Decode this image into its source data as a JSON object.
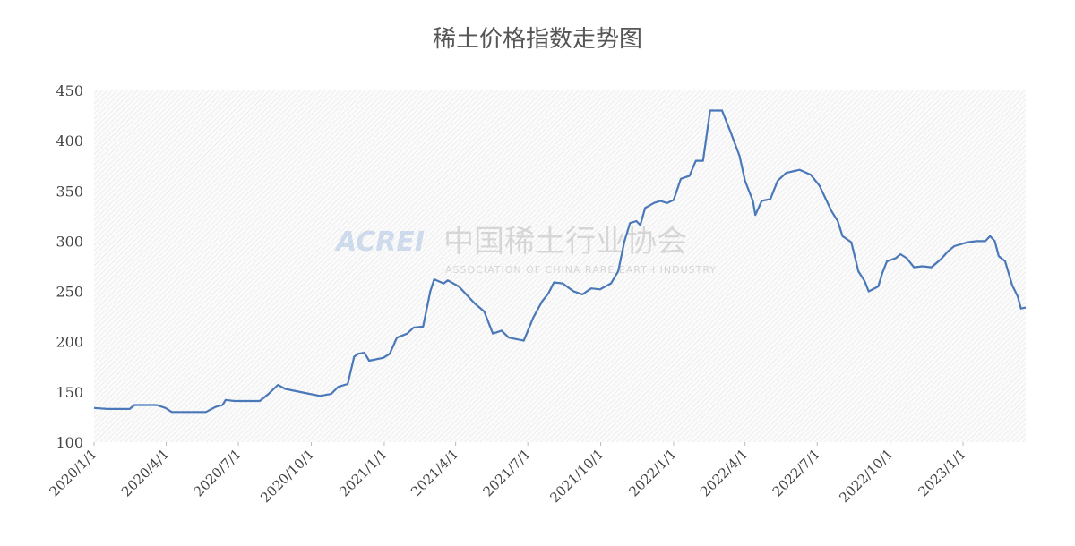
{
  "chart_data": {
    "type": "line",
    "title": "稀土价格指数走势图",
    "watermark": {
      "logo": "ACREI",
      "name": "中国稀土行业协会",
      "subtitle": "ASSOCIATION OF CHINA RARE EARTH INDUSTRY"
    },
    "x": [
      "2020/1/1",
      "2020/1/18",
      "2020/2/15",
      "2020/2/21",
      "2020/3/9",
      "2020/3/20",
      "2020/3/31",
      "2020/4/8",
      "2020/5/21",
      "2020/6/2",
      "2020/6/11",
      "2020/6/15",
      "2020/6/26",
      "2020/7/28",
      "2020/8/8",
      "2020/8/20",
      "2020/8/29",
      "2020/9/23",
      "2020/10/12",
      "2020/10/26",
      "2020/11/4",
      "2020/11/16",
      "2020/11/24",
      "2020/11/29",
      "2020/12/7",
      "2020/12/13",
      "2020/12/31",
      "2021/1/8",
      "2021/1/17",
      "2021/1/30",
      "2021/2/7",
      "2021/2/19",
      "2021/2/28",
      "2021/3/5",
      "2021/3/17",
      "2021/3/22",
      "2021/4/5",
      "2021/4/25",
      "2021/5/7",
      "2021/5/18",
      "2021/5/29",
      "2021/6/7",
      "2021/6/26",
      "2021/7/8",
      "2021/7/19",
      "2021/7/27",
      "2021/8/3",
      "2021/8/14",
      "2021/8/28",
      "2021/9/8",
      "2021/9/19",
      "2021/9/30",
      "2021/10/14",
      "2021/10/23",
      "2021/10/31",
      "2021/11/7",
      "2021/11/15",
      "2021/11/20",
      "2021/11/26",
      "2021/12/7",
      "2021/12/15",
      "2021/12/24",
      "2022/1/1",
      "2022/1/10",
      "2022/1/21",
      "2022/1/29",
      "2022/2/7",
      "2022/2/16",
      "2022/3/3",
      "2022/3/13",
      "2022/3/25",
      "2022/4/1",
      "2022/4/11",
      "2022/4/14",
      "2022/4/22",
      "2022/5/3",
      "2022/5/12",
      "2022/5/23",
      "2022/6/9",
      "2022/6/23",
      "2022/7/4",
      "2022/7/10",
      "2022/7/19",
      "2022/7/27",
      "2022/8/2",
      "2022/8/13",
      "2022/8/22",
      "2022/8/30",
      "2022/9/4",
      "2022/9/16",
      "2022/9/21",
      "2022/9/27",
      "2022/10/8",
      "2022/10/14",
      "2022/10/22",
      "2022/10/31",
      "2022/11/11",
      "2022/11/22",
      "2022/12/4",
      "2022/12/13",
      "2022/12/21",
      "2023/1/7",
      "2023/1/18",
      "2023/1/29",
      "2023/2/4",
      "2023/2/10",
      "2023/2/15",
      "2023/2/23",
      "2023/3/4",
      "2023/3/11",
      "2023/3/15",
      "2023/3/21"
    ],
    "series": [
      {
        "name": "稀土价格指数",
        "color": "#4a78b8",
        "values": [
          134,
          133,
          133,
          137,
          137,
          137,
          134,
          130,
          130,
          135,
          137,
          142,
          141,
          141,
          148,
          157,
          153,
          149,
          146,
          148,
          155,
          158,
          185,
          188,
          189,
          181,
          184,
          188,
          204,
          208,
          214,
          215,
          250,
          262,
          258,
          261,
          255,
          238,
          230,
          208,
          211,
          204,
          201,
          224,
          240,
          248,
          259,
          258,
          250,
          247,
          253,
          252,
          258,
          270,
          300,
          318,
          320,
          316,
          333,
          338,
          340,
          338,
          341,
          362,
          365,
          380,
          380,
          430,
          430,
          410,
          385,
          360,
          340,
          326,
          340,
          342,
          360,
          368,
          371,
          366,
          355,
          345,
          330,
          320,
          305,
          299,
          270,
          260,
          250,
          255,
          268,
          280,
          283,
          287,
          283,
          274,
          275,
          274,
          282,
          290,
          295,
          299,
          300,
          300,
          305,
          300,
          285,
          280,
          256,
          245,
          233,
          234
        ]
      }
    ],
    "xlim": [
      "2020/1/1",
      "2023/3/21"
    ],
    "xticks": [
      "2020/1/1",
      "2020/4/1",
      "2020/7/1",
      "2020/10/1",
      "2021/1/1",
      "2021/4/1",
      "2021/7/1",
      "2021/10/1",
      "2022/1/1",
      "2022/4/1",
      "2022/7/1",
      "2022/10/1",
      "2023/1/1"
    ],
    "ylim": [
      100,
      450
    ],
    "yticks": [
      100,
      150,
      200,
      250,
      300,
      350,
      400,
      450
    ],
    "grid": false
  }
}
